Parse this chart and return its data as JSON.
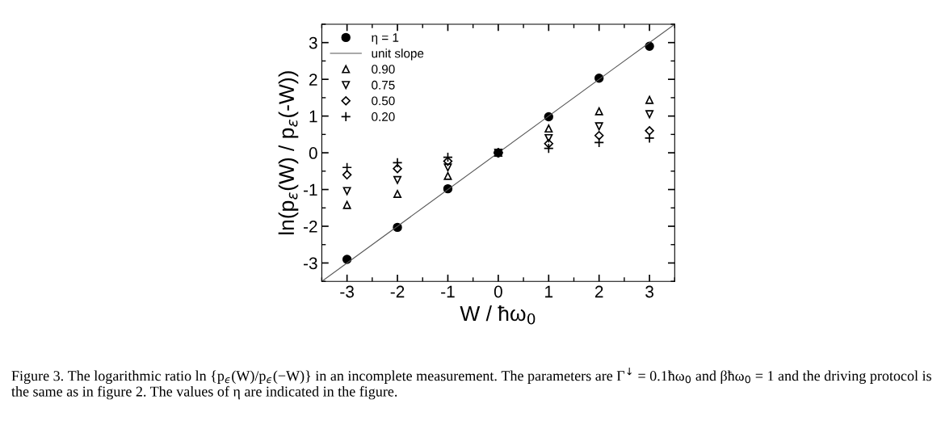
{
  "chart_data": {
    "type": "scatter",
    "xlabel": "W / ħω$_{0}$",
    "ylabel": "ln(p$_{ε}$(W) / p$_{ε}$(-W))",
    "x": [
      -3,
      -2,
      -1,
      0,
      1,
      2,
      3
    ],
    "series": [
      {
        "name": "η = 1",
        "marker": "circle",
        "color": "#000000",
        "values": [
          -2.9,
          -2.03,
          -0.98,
          0,
          0.98,
          2.03,
          2.9
        ]
      },
      {
        "name": "unit slope",
        "type": "line",
        "marker": "none",
        "line_style": "solid",
        "color": "#555555",
        "x": [
          -3.5,
          3.5
        ],
        "values": [
          -3.5,
          3.5
        ]
      },
      {
        "name": "0.90",
        "marker": "triangle",
        "color": "#000000",
        "values": [
          -1.42,
          -1.12,
          -0.63,
          0,
          0.66,
          1.13,
          1.44
        ]
      },
      {
        "name": "0.75",
        "marker": "triangle-down",
        "color": "#000000",
        "values": [
          -1.04,
          -0.74,
          -0.4,
          0,
          0.4,
          0.72,
          1.05
        ]
      },
      {
        "name": "0.50",
        "marker": "diamond",
        "color": "#000000",
        "values": [
          -0.6,
          -0.43,
          -0.23,
          0,
          0.25,
          0.47,
          0.6
        ]
      },
      {
        "name": "0.20",
        "marker": "cross",
        "color": "#000000",
        "values": [
          -0.4,
          -0.27,
          -0.12,
          0,
          0.12,
          0.28,
          0.4
        ]
      }
    ],
    "xlim": [
      -3.5,
      3.5
    ],
    "ylim": [
      -3.5,
      3.5
    ],
    "xticks": [
      -3,
      -2,
      -1,
      0,
      1,
      2,
      3
    ],
    "yticks": [
      -3,
      -2,
      -1,
      0,
      1,
      2,
      3
    ],
    "grid": false,
    "legend": "top left",
    "annotations": [
      "Figure 3. The logarithmic ratio ln {p$_{ϵ}$(W)/p$_{ϵ}$(−W)} in an incomplete measurement. The parameters are Γ$^{↓}$ = 0.1ħω$_{0}$ and βħω$_{0}$ = 1 and the driving protocol is the same as in figure 2. The values of η are indicated in the figure."
    ]
  }
}
